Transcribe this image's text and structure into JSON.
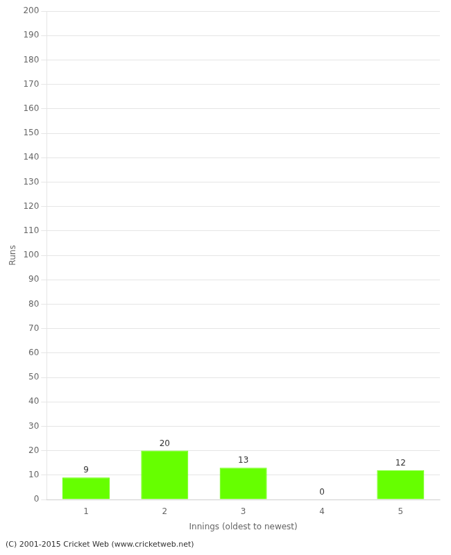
{
  "chart_data": {
    "type": "bar",
    "xlabel": "Innings (oldest to newest)",
    "ylabel": "Runs",
    "categories": [
      1,
      2,
      3,
      4,
      5
    ],
    "values": [
      9,
      20,
      13,
      0,
      12
    ],
    "color": "#66ff00",
    "ylim": [
      0,
      200
    ],
    "yticks": [
      0,
      10,
      20,
      30,
      40,
      50,
      60,
      70,
      80,
      90,
      100,
      110,
      120,
      130,
      140,
      150,
      160,
      170,
      180,
      190,
      200
    ],
    "grid": true,
    "data_labels": true,
    "annotations": [
      "(C) 2001-2015 Cricket Web (www.cricketweb.net)"
    ]
  }
}
